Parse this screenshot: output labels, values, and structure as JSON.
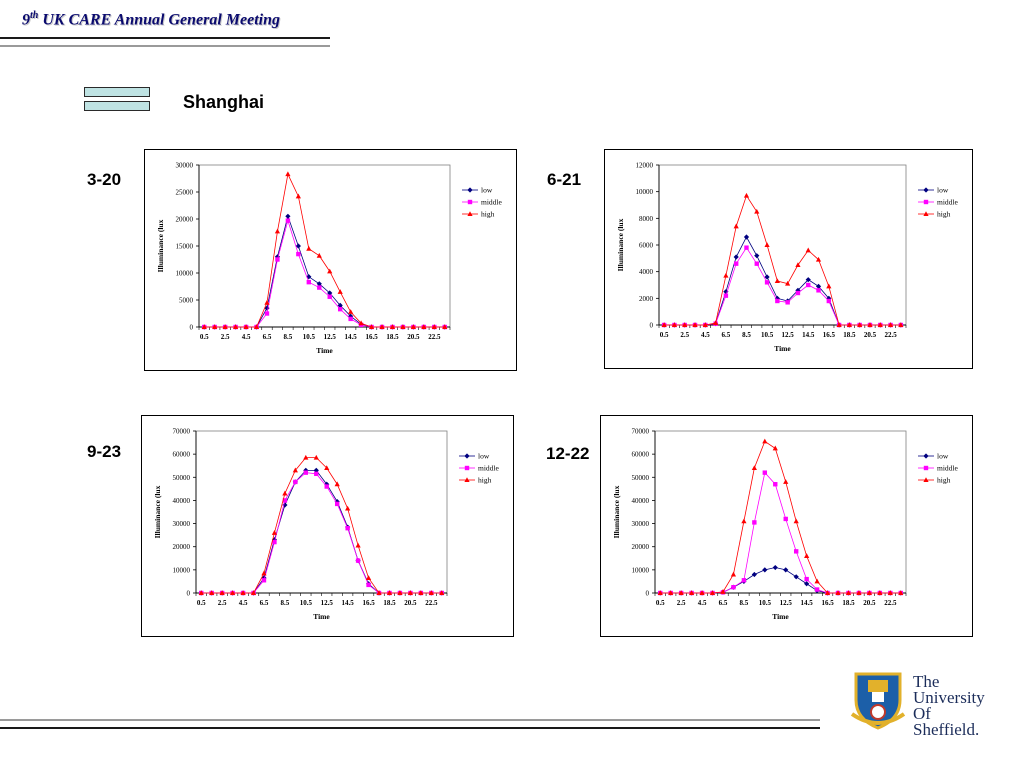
{
  "header": {
    "title_num": "9",
    "title_sup": "th",
    "title_rest": " UK CARE Annual General Meeting"
  },
  "slide": {
    "city": "Shanghai"
  },
  "logo": {
    "line1": "The",
    "line2": "University",
    "line3": "Of",
    "line4": "Sheffield.",
    "colors": {
      "shield": "#1c5fa8",
      "gold": "#e2b12b",
      "text": "#1c2d5a"
    }
  },
  "series_style": {
    "low": {
      "color": "#000080",
      "marker": "diamond"
    },
    "middle": {
      "color": "#ff00ff",
      "marker": "square"
    },
    "high": {
      "color": "#ff0000",
      "marker": "triangle"
    }
  },
  "chart_data": [
    {
      "type": "line",
      "date_label": "3-20",
      "xlabel": "Time",
      "ylabel": "Illuminance (lux",
      "ylim": [
        0,
        30000
      ],
      "yticks": [
        0,
        5000,
        10000,
        15000,
        20000,
        25000,
        30000
      ],
      "x": [
        0.5,
        1.5,
        2.5,
        3.5,
        4.5,
        5.5,
        6.5,
        7.5,
        8.5,
        9.5,
        10.5,
        11.5,
        12.5,
        13.5,
        14.5,
        15.5,
        16.5,
        17.5,
        18.5,
        19.5,
        20.5,
        21.5,
        22.5,
        23.5
      ],
      "xticks": [
        "0.5",
        "2.5",
        "4.5",
        "6.5",
        "8.5",
        "10.5",
        "12.5",
        "14.5",
        "16.5",
        "18.5",
        "20.5",
        "22.5"
      ],
      "legend": "right",
      "series": [
        {
          "name": "low",
          "values": [
            0,
            0,
            0,
            0,
            0,
            0,
            3500,
            13000,
            20500,
            15000,
            9300,
            8000,
            6300,
            4000,
            2000,
            500,
            0,
            0,
            0,
            0,
            0,
            0,
            0,
            0
          ]
        },
        {
          "name": "middle",
          "values": [
            0,
            0,
            0,
            0,
            0,
            0,
            2500,
            12500,
            19700,
            13500,
            8300,
            7300,
            5600,
            3300,
            1500,
            400,
            0,
            0,
            0,
            0,
            0,
            0,
            0,
            0
          ]
        },
        {
          "name": "high",
          "values": [
            0,
            0,
            0,
            0,
            0,
            0,
            4500,
            17700,
            28300,
            24200,
            14500,
            13200,
            10300,
            6500,
            2800,
            700,
            0,
            0,
            0,
            0,
            0,
            0,
            0,
            0
          ]
        }
      ]
    },
    {
      "type": "line",
      "date_label": "6-21",
      "xlabel": "Time",
      "ylabel": "Illuminance (lux",
      "ylim": [
        0,
        12000
      ],
      "yticks": [
        0,
        2000,
        4000,
        6000,
        8000,
        10000,
        12000
      ],
      "x": [
        0.5,
        1.5,
        2.5,
        3.5,
        4.5,
        5.5,
        6.5,
        7.5,
        8.5,
        9.5,
        10.5,
        11.5,
        12.5,
        13.5,
        14.5,
        15.5,
        16.5,
        17.5,
        18.5,
        19.5,
        20.5,
        21.5,
        22.5,
        23.5
      ],
      "xticks": [
        "0.5",
        "2.5",
        "4.5",
        "6.5",
        "8.5",
        "10.5",
        "12.5",
        "14.5",
        "16.5",
        "18.5",
        "20.5",
        "22.5"
      ],
      "legend": "right",
      "series": [
        {
          "name": "low",
          "values": [
            0,
            0,
            0,
            0,
            0,
            100,
            2500,
            5100,
            6600,
            5200,
            3600,
            2000,
            1800,
            2600,
            3400,
            2900,
            2000,
            0,
            0,
            0,
            0,
            0,
            0,
            0
          ]
        },
        {
          "name": "middle",
          "values": [
            0,
            0,
            0,
            0,
            0,
            100,
            2200,
            4600,
            5800,
            4600,
            3200,
            1800,
            1700,
            2400,
            3000,
            2600,
            1800,
            0,
            0,
            0,
            0,
            0,
            0,
            0
          ]
        },
        {
          "name": "high",
          "values": [
            0,
            0,
            0,
            0,
            0,
            150,
            3700,
            7400,
            9700,
            8500,
            6000,
            3300,
            3100,
            4500,
            5600,
            4900,
            2900,
            0,
            0,
            0,
            0,
            0,
            0,
            0
          ]
        }
      ]
    },
    {
      "type": "line",
      "date_label": "9-23",
      "xlabel": "Time",
      "ylabel": "Illuminance (lux",
      "ylim": [
        0,
        70000
      ],
      "yticks": [
        0,
        10000,
        20000,
        30000,
        40000,
        50000,
        60000,
        70000
      ],
      "x": [
        0.5,
        1.5,
        2.5,
        3.5,
        4.5,
        5.5,
        6.5,
        7.5,
        8.5,
        9.5,
        10.5,
        11.5,
        12.5,
        13.5,
        14.5,
        15.5,
        16.5,
        17.5,
        18.5,
        19.5,
        20.5,
        21.5,
        22.5,
        23.5
      ],
      "xticks": [
        "0.5",
        "2.5",
        "4.5",
        "6.5",
        "8.5",
        "10.5",
        "12.5",
        "14.5",
        "16.5",
        "18.5",
        "20.5",
        "22.5"
      ],
      "legend": "right",
      "series": [
        {
          "name": "low",
          "values": [
            0,
            0,
            0,
            0,
            0,
            0,
            6500,
            23000,
            38000,
            48000,
            53000,
            53000,
            47000,
            39500,
            28500,
            14000,
            4000,
            0,
            0,
            0,
            0,
            0,
            0,
            0
          ]
        },
        {
          "name": "middle",
          "values": [
            0,
            0,
            0,
            0,
            0,
            0,
            5500,
            22000,
            40000,
            48000,
            52000,
            51500,
            46000,
            38500,
            28000,
            14000,
            3500,
            0,
            0,
            0,
            0,
            0,
            0,
            0
          ]
        },
        {
          "name": "high",
          "values": [
            0,
            0,
            0,
            0,
            0,
            0,
            8500,
            26000,
            43000,
            53000,
            58500,
            58500,
            54000,
            47000,
            36500,
            20500,
            6500,
            0,
            0,
            0,
            0,
            0,
            0,
            0
          ]
        }
      ]
    },
    {
      "type": "line",
      "date_label": "12-22",
      "xlabel": "Time",
      "ylabel": "Illuminance (lux",
      "ylim": [
        0,
        70000
      ],
      "yticks": [
        0,
        10000,
        20000,
        30000,
        40000,
        50000,
        60000,
        70000
      ],
      "x": [
        0.5,
        1.5,
        2.5,
        3.5,
        4.5,
        5.5,
        6.5,
        7.5,
        8.5,
        9.5,
        10.5,
        11.5,
        12.5,
        13.5,
        14.5,
        15.5,
        16.5,
        17.5,
        18.5,
        19.5,
        20.5,
        21.5,
        22.5,
        23.5
      ],
      "xticks": [
        "0.5",
        "2.5",
        "4.5",
        "6.5",
        "8.5",
        "10.5",
        "12.5",
        "14.5",
        "16.5",
        "18.5",
        "20.5",
        "22.5"
      ],
      "legend": "right",
      "series": [
        {
          "name": "low",
          "values": [
            0,
            0,
            0,
            0,
            0,
            0,
            300,
            2500,
            5000,
            8000,
            10000,
            11000,
            10000,
            7000,
            4000,
            1000,
            0,
            0,
            0,
            0,
            0,
            0,
            0,
            0
          ]
        },
        {
          "name": "middle",
          "values": [
            0,
            0,
            0,
            0,
            0,
            0,
            300,
            2500,
            5500,
            30500,
            52000,
            47000,
            32000,
            18000,
            6000,
            1500,
            0,
            0,
            0,
            0,
            0,
            0,
            0,
            0
          ]
        },
        {
          "name": "high",
          "values": [
            0,
            0,
            0,
            0,
            0,
            0,
            500,
            8000,
            31000,
            54000,
            65500,
            62500,
            48000,
            31000,
            16000,
            5000,
            0,
            0,
            0,
            0,
            0,
            0,
            0,
            0
          ]
        }
      ]
    }
  ]
}
